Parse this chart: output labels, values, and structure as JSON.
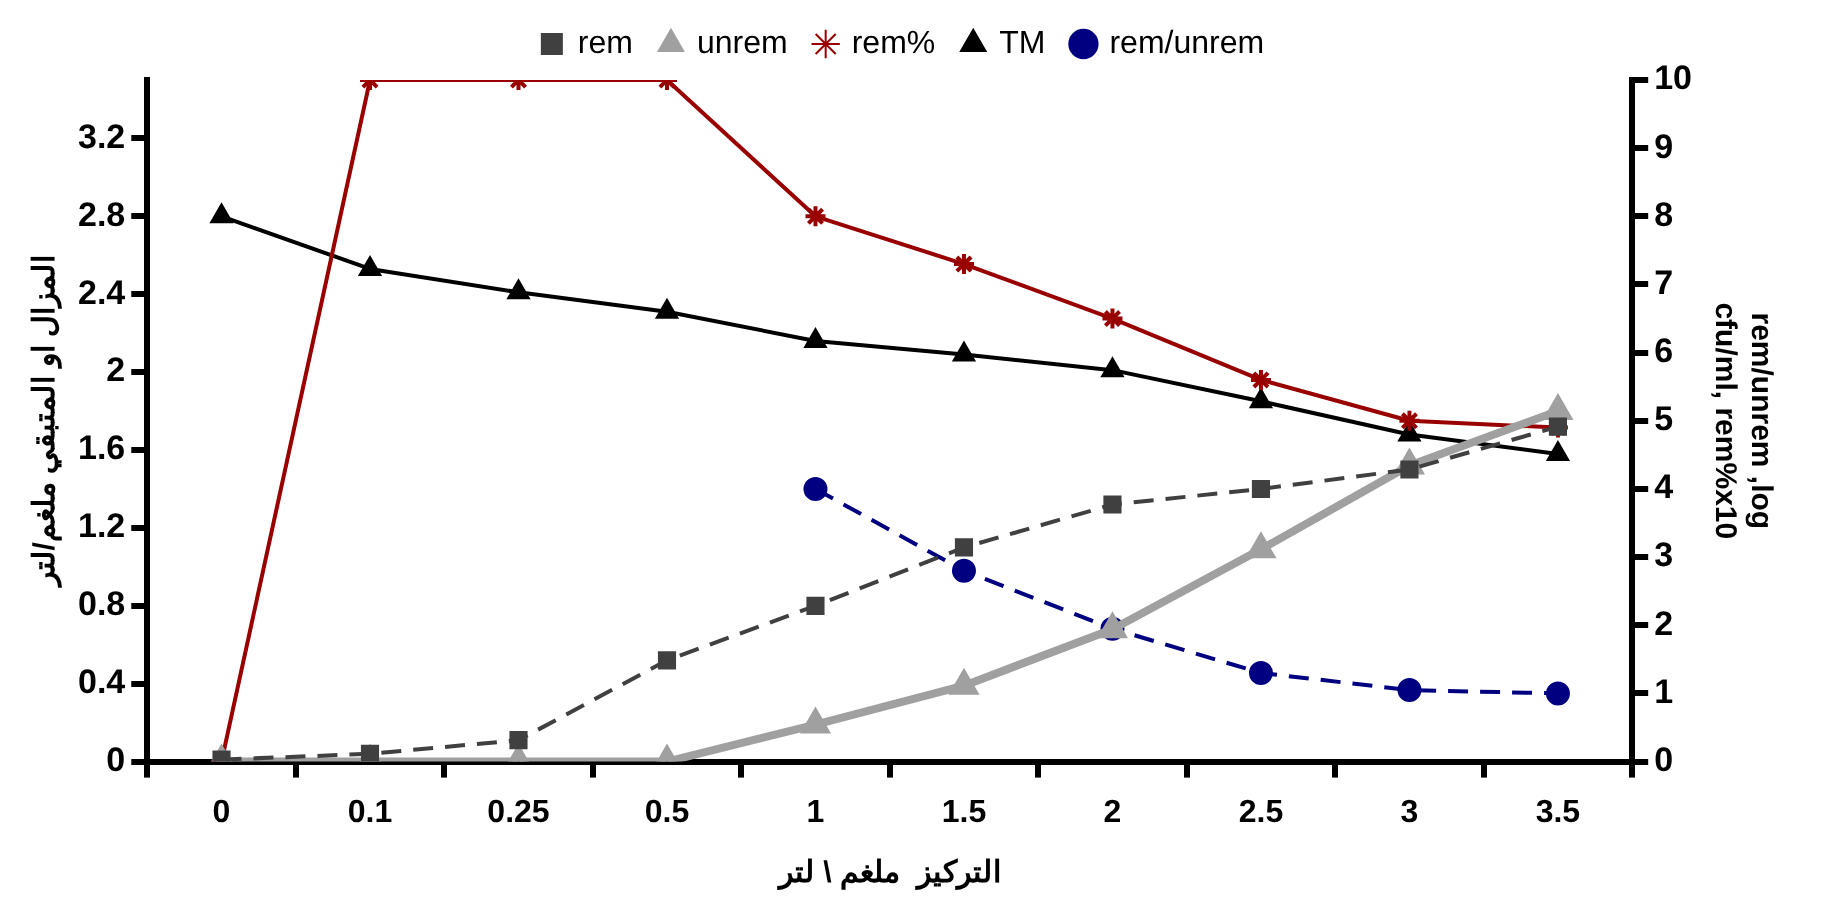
{
  "chart_data": {
    "type": "line",
    "categories": [
      "0",
      "0.1",
      "0.25",
      "0.5",
      "1",
      "1.5",
      "2",
      "2.5",
      "3",
      "3.5"
    ],
    "xlabel": "التركيز  ملغم \\ لتر",
    "ylabel": "المزال او المتبقي ملغم/لتر",
    "y2label": "rem/unrem ,log\ncfu/ml, rem%x10",
    "ylim": [
      0,
      3.5
    ],
    "yticks": [
      0,
      0.4,
      0.8,
      1.2,
      1.6,
      2,
      2.4,
      2.8,
      3.2
    ],
    "y2lim": [
      0,
      10
    ],
    "y2ticks": [
      0,
      1,
      2,
      3,
      4,
      5,
      6,
      7,
      8,
      9,
      10
    ],
    "grid": false,
    "legend": "top",
    "series": [
      {
        "name": "rem",
        "color": "#404040",
        "marker": "square",
        "line_style": "dashed",
        "values": [
          0.01,
          0.04,
          0.11,
          0.52,
          0.8,
          1.1,
          1.32,
          1.4,
          1.5,
          1.72
        ]
      },
      {
        "name": "unrem",
        "color": "#a0a0a0",
        "marker": "triangle",
        "line_style": "solid",
        "values": [
          0,
          0,
          0,
          0,
          0.19,
          0.39,
          0.68,
          1.09,
          1.52,
          1.8
        ]
      },
      {
        "name": "rem%",
        "color": "#990000",
        "marker": "cross",
        "line_style": "solid",
        "axis": "y2",
        "values": [
          0,
          10,
          10,
          10,
          8,
          7.3,
          6.5,
          5.6,
          5,
          4.9
        ]
      },
      {
        "name": "TM",
        "color": "#000000",
        "marker": "triangle",
        "line_style": "solid",
        "values": [
          2.8,
          2.53,
          2.41,
          2.31,
          2.16,
          2.09,
          2.01,
          1.85,
          1.68,
          1.58
        ]
      },
      {
        "name": "rem/unrem",
        "color": "#000080",
        "marker": "circle",
        "line_style": "dashed",
        "axis": "y2",
        "values": [
          null,
          null,
          null,
          null,
          4,
          2.8,
          1.95,
          1.3,
          1.05,
          1
        ]
      }
    ]
  }
}
